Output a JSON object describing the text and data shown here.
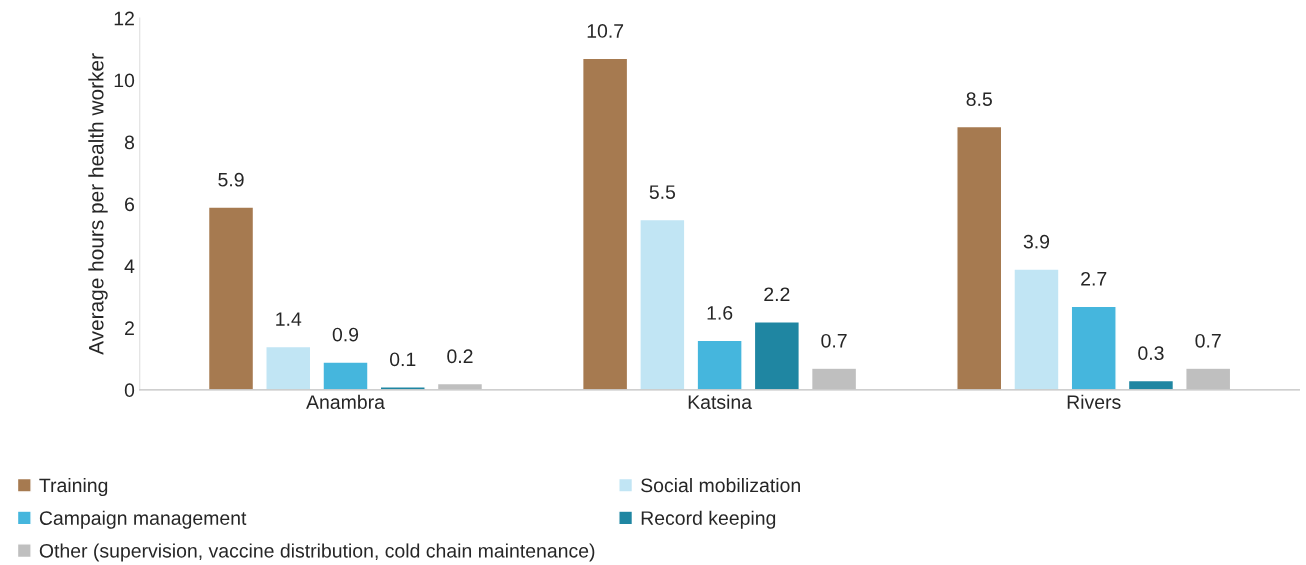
{
  "chart_data": {
    "type": "bar",
    "ylabel": "Average hours per health worker",
    "categories": [
      "Anambra",
      "Katsina",
      "Rivers"
    ],
    "series": [
      {
        "name": "Training",
        "color": "#a67a50",
        "values": [
          5.9,
          10.7,
          8.5
        ]
      },
      {
        "name": "Social mobilization",
        "color": "#c1e5f4",
        "values": [
          1.4,
          5.5,
          3.9
        ]
      },
      {
        "name": "Campaign management",
        "color": "#45b6dd",
        "values": [
          0.9,
          1.6,
          2.7
        ]
      },
      {
        "name": "Record keeping",
        "color": "#1f86a2",
        "values": [
          0.1,
          2.2,
          0.3
        ]
      },
      {
        "name": "Other (supervision, vaccine distribution, cold chain maintenance)",
        "color": "#bfbfbf",
        "values": [
          0.2,
          0.7,
          0.7
        ]
      }
    ],
    "ylim": [
      0,
      12
    ],
    "yticks": [
      0,
      2,
      4,
      6,
      8,
      10,
      12
    ],
    "data_labels": true,
    "grid": false,
    "legend": "bottom"
  }
}
